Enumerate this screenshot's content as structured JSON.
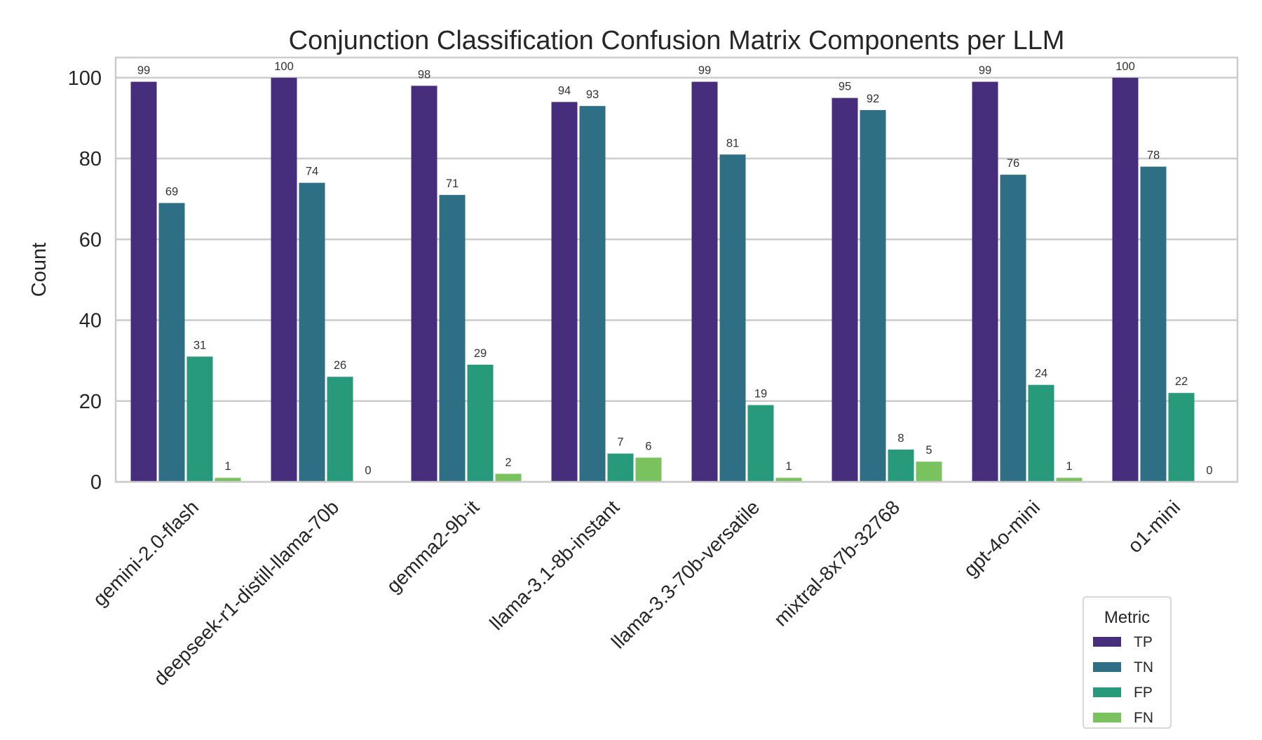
{
  "chart_data": {
    "type": "bar",
    "title": "Conjunction Classification Confusion Matrix Components per LLM",
    "xlabel": "",
    "ylabel": "Count",
    "ylim": [
      0,
      105
    ],
    "yticks": [
      0,
      20,
      40,
      60,
      80,
      100
    ],
    "grid": true,
    "categories": [
      "gemini-2.0-flash",
      "deepseek-r1-distill-llama-70b",
      "gemma2-9b-it",
      "llama-3.1-8b-instant",
      "llama-3.3-70b-versatile",
      "mixtral-8x7b-32768",
      "gpt-4o-mini",
      "o1-mini"
    ],
    "series": [
      {
        "name": "TP",
        "color": "#472e7c",
        "values": [
          99,
          100,
          98,
          94,
          99,
          95,
          99,
          100
        ]
      },
      {
        "name": "TN",
        "color": "#2e6f85",
        "values": [
          69,
          74,
          71,
          93,
          81,
          92,
          76,
          78
        ]
      },
      {
        "name": "FP",
        "color": "#269a7a",
        "values": [
          31,
          26,
          29,
          7,
          19,
          8,
          24,
          22
        ]
      },
      {
        "name": "FN",
        "color": "#79c25d",
        "values": [
          1,
          0,
          2,
          6,
          1,
          5,
          1,
          0
        ]
      }
    ],
    "legend": {
      "title": "Metric",
      "placement": "bottom-right"
    },
    "data_labels": true,
    "palette": "viridis"
  }
}
